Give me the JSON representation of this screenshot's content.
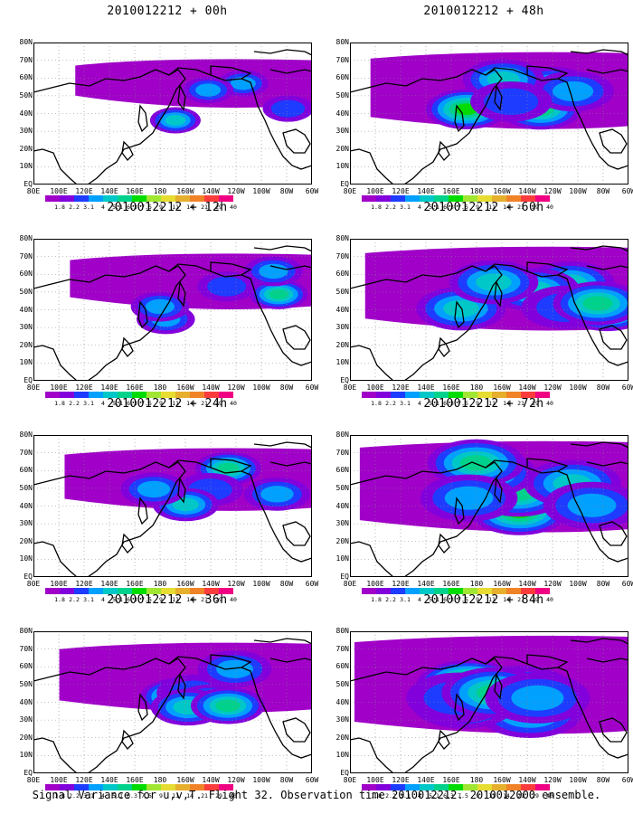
{
  "caption": "Signal Variance for u,v,T. Flight 32. Observation time 2010012212. 2010012000 ensemble.",
  "panels": [
    {
      "title": "2010012212 + 00h",
      "lead": 0
    },
    {
      "title": "2010012212 + 48h",
      "lead": 48
    },
    {
      "title": "2010012212 + 12h",
      "lead": 12
    },
    {
      "title": "2010012212 + 60h",
      "lead": 60
    },
    {
      "title": "2010012212 + 24h",
      "lead": 24
    },
    {
      "title": "2010012212 + 72h",
      "lead": 72
    },
    {
      "title": "2010012212 + 36h",
      "lead": 36
    },
    {
      "title": "2010012212 + 84h",
      "lead": 84
    }
  ],
  "lat_labels": [
    "80N",
    "70N",
    "60N",
    "50N",
    "40N",
    "30N",
    "20N",
    "10N",
    "EQ"
  ],
  "lon_labels": [
    "80E",
    "100E",
    "120E",
    "140E",
    "160E",
    "180",
    "160W",
    "140W",
    "120W",
    "100W",
    "80W",
    "60W"
  ],
  "colorbar": {
    "labels": [
      "1.8",
      "2.2",
      "3.1",
      "4",
      "5.1",
      "6.3",
      "7.5",
      "9",
      "11",
      "14",
      "21",
      "29",
      "40"
    ],
    "colors": [
      "#a000c8",
      "#8200dc",
      "#1e3cff",
      "#00a0ff",
      "#00c8c8",
      "#00d28c",
      "#00dc00",
      "#a0e632",
      "#e6dc32",
      "#e6af2d",
      "#f08228",
      "#fa3c3c",
      "#f00082"
    ]
  }
}
